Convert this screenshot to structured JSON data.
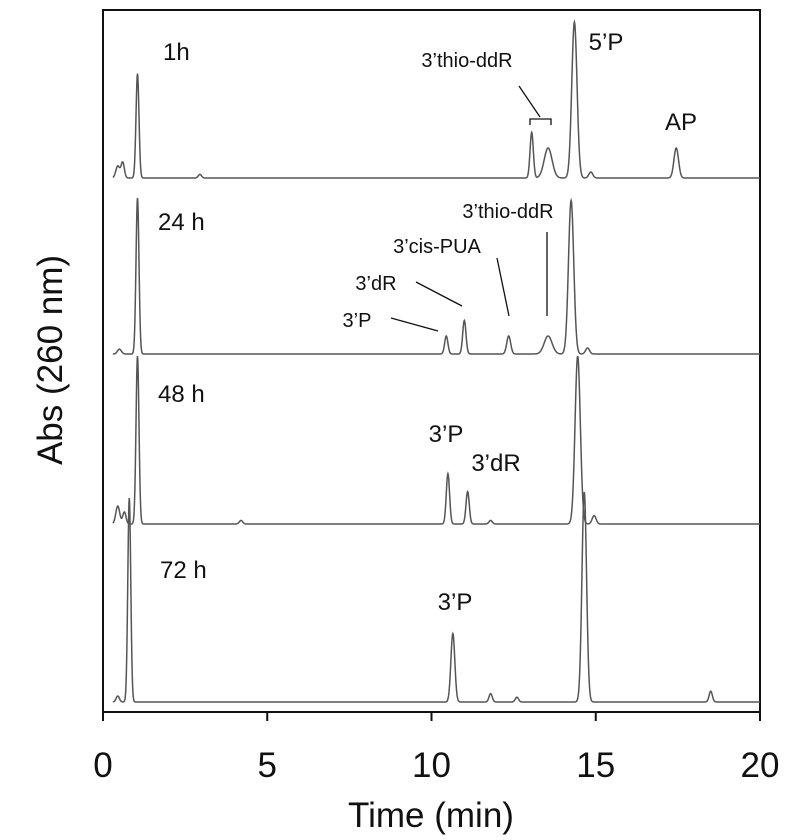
{
  "chart_data": {
    "type": "line",
    "xlabel": "Time (min)",
    "ylabel": "Abs (260 nm)",
    "xlim": [
      0,
      20
    ],
    "x_ticks": [
      0,
      5,
      10,
      15,
      20
    ],
    "grid": false,
    "series": [
      {
        "name": "1h",
        "baseline": 0,
        "peaks": [
          {
            "t": 0.45,
            "h": 0.1,
            "w": 0.06
          },
          {
            "t": 0.6,
            "h": 0.13,
            "w": 0.05
          },
          {
            "t": 1.05,
            "h": 0.87,
            "w": 0.045
          },
          {
            "t": 2.95,
            "h": 0.03,
            "w": 0.05
          },
          {
            "t": 13.05,
            "h": 0.38,
            "w": 0.05
          },
          {
            "t": 13.55,
            "h": 0.25,
            "w": 0.12
          },
          {
            "t": 14.35,
            "h": 1.3,
            "w": 0.08
          },
          {
            "t": 14.85,
            "h": 0.05,
            "w": 0.06
          },
          {
            "t": 17.45,
            "h": 0.25,
            "w": 0.07
          }
        ],
        "annotations": [
          {
            "text": "1h",
            "size": "big"
          },
          {
            "text": "3’thio-ddR",
            "size": "small"
          },
          {
            "text": "5’P",
            "size": "big"
          },
          {
            "text": "AP",
            "size": "big"
          }
        ]
      },
      {
        "name": "24 h",
        "baseline": 0,
        "peaks": [
          {
            "t": 0.5,
            "h": 0.04,
            "w": 0.06
          },
          {
            "t": 1.05,
            "h": 1.3,
            "w": 0.045
          },
          {
            "t": 10.45,
            "h": 0.15,
            "w": 0.05
          },
          {
            "t": 11.0,
            "h": 0.28,
            "w": 0.05
          },
          {
            "t": 12.35,
            "h": 0.15,
            "w": 0.06
          },
          {
            "t": 13.55,
            "h": 0.15,
            "w": 0.12
          },
          {
            "t": 14.25,
            "h": 1.28,
            "w": 0.08
          },
          {
            "t": 14.75,
            "h": 0.05,
            "w": 0.06
          }
        ],
        "annotations": [
          {
            "text": "24 h",
            "size": "big"
          },
          {
            "text": "3’thio-ddR",
            "size": "small"
          },
          {
            "text": "3’cis-PUA",
            "size": "small"
          },
          {
            "text": "3’dR",
            "size": "small"
          },
          {
            "text": "3’P",
            "size": "small"
          }
        ]
      },
      {
        "name": "48 h",
        "baseline": 0,
        "peaks": [
          {
            "t": 0.45,
            "h": 0.15,
            "w": 0.06
          },
          {
            "t": 0.65,
            "h": 0.1,
            "w": 0.05
          },
          {
            "t": 1.05,
            "h": 1.4,
            "w": 0.045
          },
          {
            "t": 4.2,
            "h": 0.03,
            "w": 0.05
          },
          {
            "t": 10.5,
            "h": 0.42,
            "w": 0.05
          },
          {
            "t": 11.1,
            "h": 0.27,
            "w": 0.05
          },
          {
            "t": 11.8,
            "h": 0.03,
            "w": 0.05
          },
          {
            "t": 14.45,
            "h": 1.4,
            "w": 0.08
          },
          {
            "t": 14.95,
            "h": 0.07,
            "w": 0.06
          }
        ],
        "annotations": [
          {
            "text": "48 h",
            "size": "big"
          },
          {
            "text": "3’P",
            "size": "big"
          },
          {
            "text": "3’dR",
            "size": "big"
          }
        ]
      },
      {
        "name": "72 h",
        "baseline": 0,
        "peaks": [
          {
            "t": 0.45,
            "h": 0.05,
            "w": 0.05
          },
          {
            "t": 0.8,
            "h": 1.7,
            "w": 0.045
          },
          {
            "t": 10.65,
            "h": 0.57,
            "w": 0.06
          },
          {
            "t": 11.8,
            "h": 0.07,
            "w": 0.05
          },
          {
            "t": 12.6,
            "h": 0.04,
            "w": 0.05
          },
          {
            "t": 14.65,
            "h": 1.75,
            "w": 0.07
          },
          {
            "t": 18.5,
            "h": 0.09,
            "w": 0.05
          }
        ],
        "annotations": [
          {
            "text": "72 h",
            "size": "big"
          },
          {
            "text": "3’P",
            "size": "big"
          }
        ]
      }
    ]
  }
}
